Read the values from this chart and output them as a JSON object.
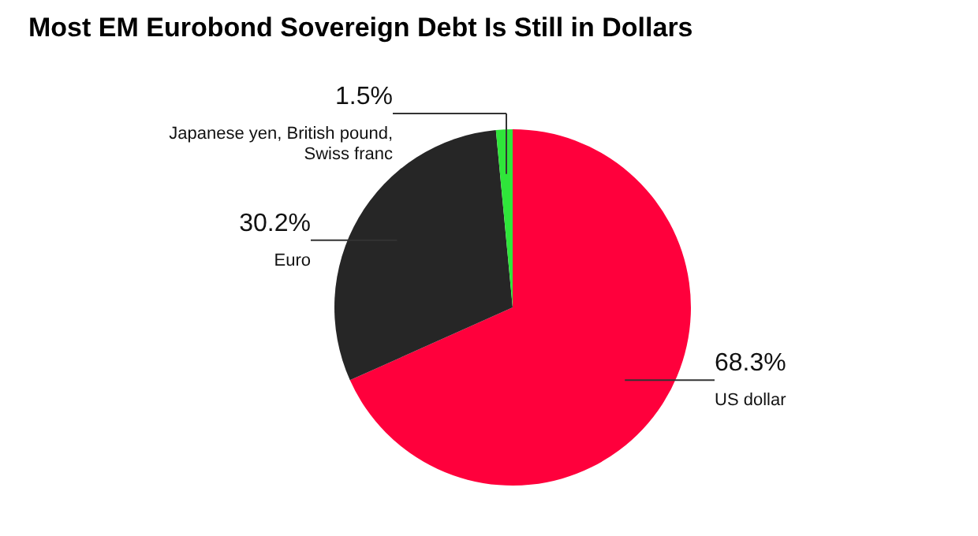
{
  "chart_data": {
    "type": "pie",
    "title": "Most EM Eurobond Sovereign Debt Is Still in Dollars",
    "categories": [
      "US dollar",
      "Euro",
      "Japanese yen, British pound, Swiss franc"
    ],
    "values": [
      68.3,
      30.2,
      1.5
    ],
    "value_labels": [
      "68.3%",
      "30.2%",
      "1.5%"
    ],
    "colors": [
      "#ff003c",
      "#262626",
      "#2fe53a"
    ],
    "legend": false
  }
}
